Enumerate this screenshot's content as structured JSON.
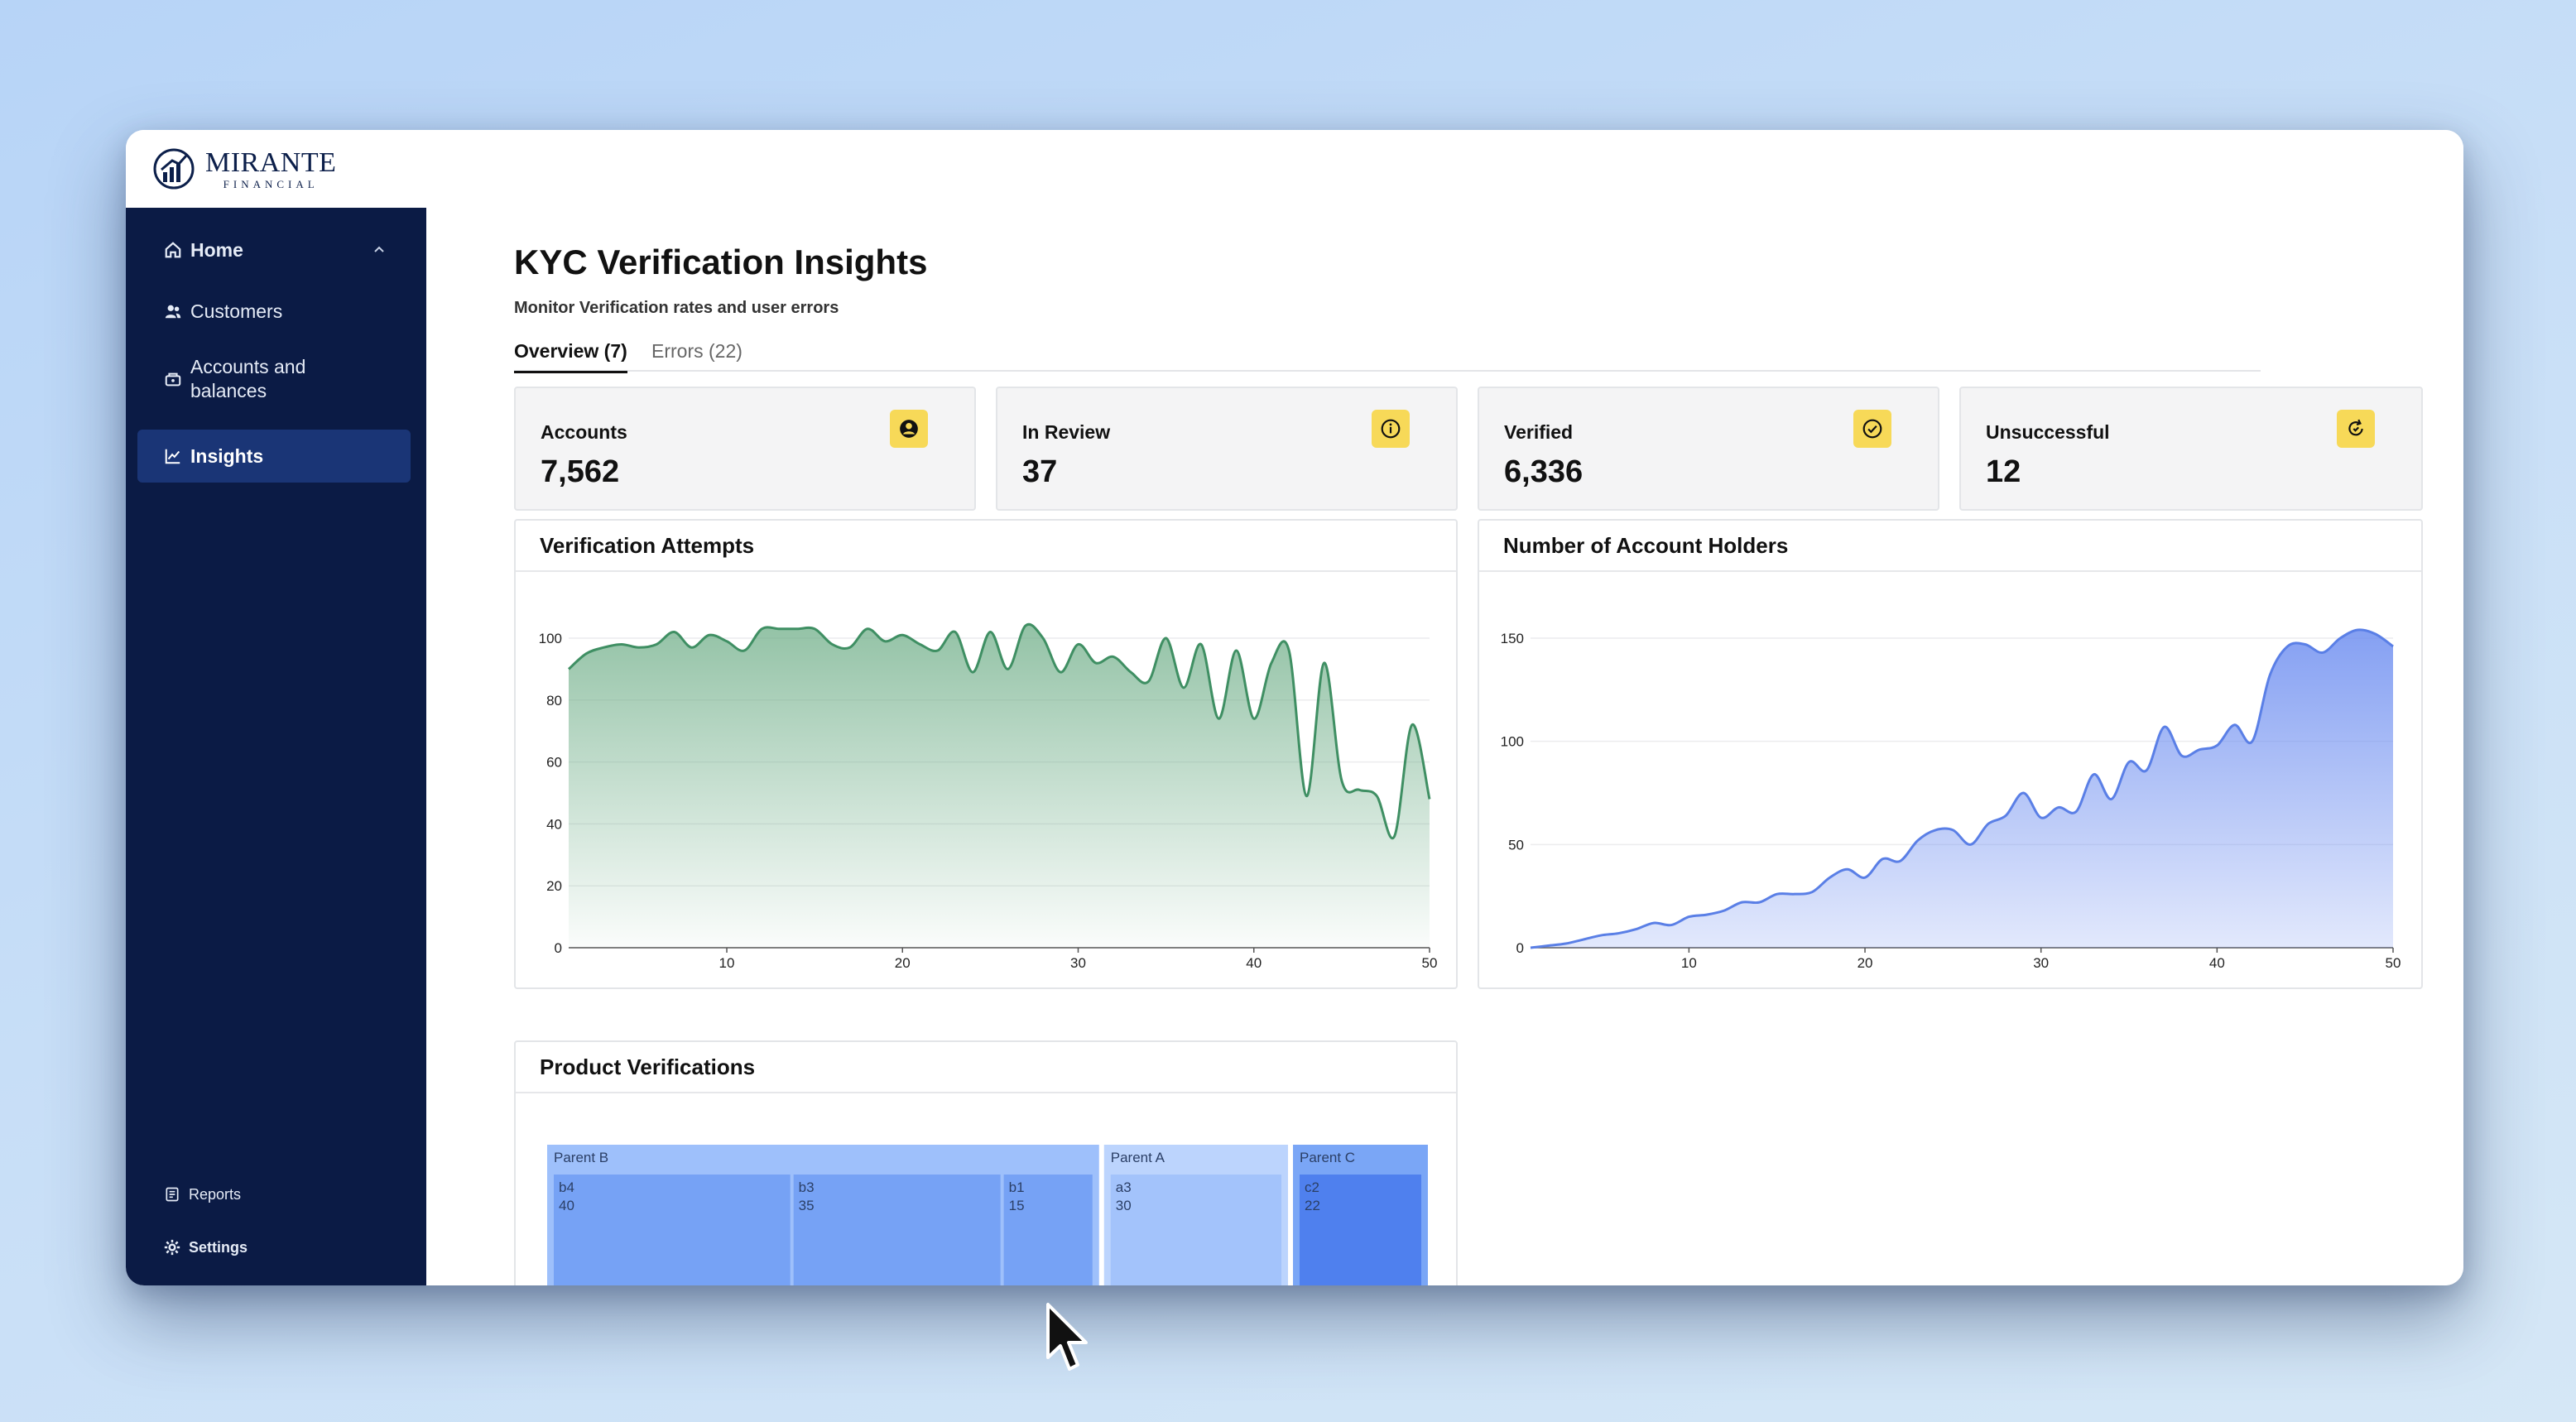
{
  "brand": {
    "name": "MIRANTE",
    "sub": "FINANCIAL"
  },
  "sidebar": {
    "items": [
      {
        "label": "Home",
        "icon": "home-icon"
      },
      {
        "label": "Customers",
        "icon": "users-icon"
      },
      {
        "label": "Accounts and balances",
        "icon": "wallet-icon"
      },
      {
        "label": "Insights",
        "icon": "chart-line-icon",
        "active": true
      }
    ],
    "footer": [
      {
        "label": "Reports",
        "icon": "report-icon"
      },
      {
        "label": "Settings",
        "icon": "gear-icon"
      }
    ]
  },
  "page": {
    "title": "KYC Verification Insights",
    "subtitle": "Monitor Verification rates and user errors",
    "tabs": [
      {
        "label": "Overview (7)",
        "active": true
      },
      {
        "label": "Errors (22)"
      }
    ]
  },
  "stats": [
    {
      "label": "Accounts",
      "value": "7,562",
      "icon": "user-circle-icon"
    },
    {
      "label": "In Review",
      "value": "37",
      "icon": "info-icon"
    },
    {
      "label": "Verified",
      "value": "6,336",
      "icon": "check-circle-icon"
    },
    {
      "label": "Unsuccessful",
      "value": "12",
      "icon": "retry-icon"
    }
  ],
  "colors": {
    "accent": "#f7d958",
    "sidebar": "#0b1b45",
    "active_nav": "#1a3576",
    "green": "#3f8f63",
    "blue": "#5a7fe6"
  },
  "chart_data": [
    {
      "type": "area",
      "title": "Verification Attempts",
      "xlim": [
        1,
        50
      ],
      "ylim": [
        0,
        100
      ],
      "x_ticks": [
        10,
        20,
        30,
        40,
        50
      ],
      "y_ticks": [
        0,
        20,
        40,
        60,
        80,
        100
      ],
      "x": [
        1,
        2,
        3,
        4,
        5,
        6,
        7,
        8,
        9,
        10,
        11,
        12,
        13,
        14,
        15,
        16,
        17,
        18,
        19,
        20,
        21,
        22,
        23,
        24,
        25,
        26,
        27,
        28,
        29,
        30,
        31,
        32,
        33,
        34,
        35,
        36,
        37,
        38,
        39,
        40,
        41,
        42,
        43,
        44,
        45,
        46,
        47,
        48,
        49,
        50
      ],
      "values": [
        90,
        95,
        97,
        98,
        97,
        98,
        102,
        97,
        101,
        99,
        96,
        103,
        103,
        103,
        103,
        98,
        97,
        103,
        99,
        101,
        98,
        96,
        102,
        89,
        102,
        90,
        104,
        100,
        89,
        98,
        92,
        94,
        89,
        86,
        100,
        84,
        98,
        74,
        96,
        74,
        92,
        96,
        49,
        92,
        54,
        51,
        49,
        36,
        72,
        48
      ],
      "color": "#3f8f63"
    },
    {
      "type": "area",
      "title": "Number of Account Holders",
      "xlim": [
        1,
        50
      ],
      "ylim": [
        0,
        150
      ],
      "x_ticks": [
        10,
        20,
        30,
        40,
        50
      ],
      "y_ticks": [
        0,
        50,
        100,
        150
      ],
      "x": [
        1,
        2,
        3,
        4,
        5,
        6,
        7,
        8,
        9,
        10,
        11,
        12,
        13,
        14,
        15,
        16,
        17,
        18,
        19,
        20,
        21,
        22,
        23,
        24,
        25,
        26,
        27,
        28,
        29,
        30,
        31,
        32,
        33,
        34,
        35,
        36,
        37,
        38,
        39,
        40,
        41,
        42,
        43,
        44,
        45,
        46,
        47,
        48,
        49,
        50
      ],
      "values": [
        0,
        1,
        2,
        4,
        6,
        7,
        9,
        12,
        11,
        15,
        16,
        18,
        22,
        22,
        26,
        26,
        27,
        34,
        38,
        34,
        43,
        42,
        52,
        57,
        57,
        50,
        60,
        64,
        75,
        63,
        68,
        66,
        84,
        72,
        90,
        86,
        107,
        93,
        96,
        98,
        108,
        100,
        132,
        146,
        147,
        143,
        150,
        154,
        152,
        146
      ],
      "color": "#5a7fe6"
    },
    {
      "type": "treemap",
      "title": "Product Verifications",
      "groups": [
        {
          "name": "Parent B",
          "children": [
            {
              "name": "b4",
              "value": 40
            },
            {
              "name": "b3",
              "value": 35
            },
            {
              "name": "b1",
              "value": 15
            }
          ]
        },
        {
          "name": "Parent A",
          "children": [
            {
              "name": "a3",
              "value": 30
            }
          ]
        },
        {
          "name": "Parent C",
          "children": [
            {
              "name": "c2",
              "value": 22
            }
          ]
        }
      ]
    }
  ]
}
